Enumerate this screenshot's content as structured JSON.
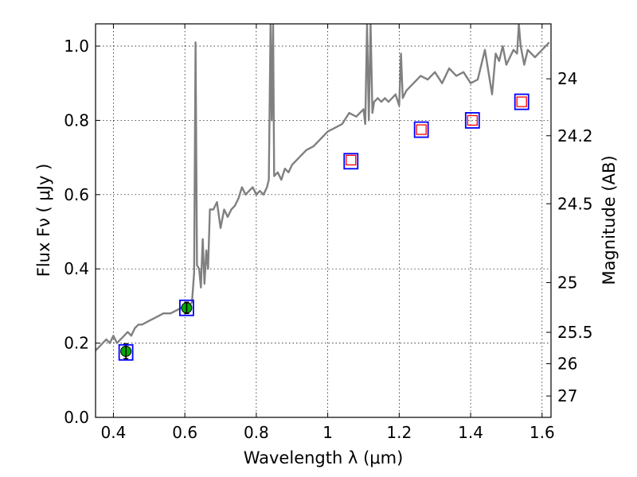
{
  "chart_data": {
    "type": "scatter",
    "xlabel": "Wavelength  λ (μm)",
    "ylabel": "Flux  Fν ( μJy )",
    "y2label": "Magnitude (AB)",
    "xlim": [
      0.35,
      1.625
    ],
    "ylim": [
      0.0,
      1.06
    ],
    "grid": true,
    "x_ticks": [
      0.4,
      0.6,
      0.8,
      1.0,
      1.2,
      1.4,
      1.6
    ],
    "x_tick_labels": [
      "0.4",
      "0.6",
      "0.8",
      "1",
      "1.2",
      "1.4",
      "1.6"
    ],
    "y_ticks": [
      0.0,
      0.2,
      0.4,
      0.6,
      0.8,
      1.0
    ],
    "y_tick_labels": [
      "0.0",
      "0.2",
      "0.4",
      "0.6",
      "0.8",
      "1.0"
    ],
    "mag_ticks": [
      24,
      24.2,
      24.5,
      25,
      25.5,
      26,
      27
    ],
    "mag_tick_labels": [
      "24",
      "24.2",
      "24.5",
      "25",
      "25.5",
      "26",
      "27"
    ],
    "model_spectrum": {
      "color": "#808080",
      "x": [
        0.35,
        0.36,
        0.37,
        0.38,
        0.39,
        0.4,
        0.41,
        0.42,
        0.43,
        0.44,
        0.45,
        0.46,
        0.47,
        0.48,
        0.5,
        0.52,
        0.54,
        0.56,
        0.58,
        0.6,
        0.61,
        0.62,
        0.626,
        0.63,
        0.634,
        0.64,
        0.645,
        0.65,
        0.655,
        0.66,
        0.665,
        0.67,
        0.68,
        0.69,
        0.7,
        0.71,
        0.72,
        0.73,
        0.74,
        0.75,
        0.76,
        0.77,
        0.78,
        0.79,
        0.8,
        0.81,
        0.82,
        0.83,
        0.835,
        0.84,
        0.843,
        0.847,
        0.85,
        0.86,
        0.87,
        0.88,
        0.89,
        0.9,
        0.92,
        0.94,
        0.96,
        0.98,
        1.0,
        1.02,
        1.04,
        1.06,
        1.08,
        1.1,
        1.105,
        1.11,
        1.115,
        1.12,
        1.125,
        1.13,
        1.14,
        1.15,
        1.16,
        1.17,
        1.18,
        1.19,
        1.2,
        1.205,
        1.21,
        1.22,
        1.24,
        1.26,
        1.28,
        1.3,
        1.32,
        1.34,
        1.36,
        1.38,
        1.4,
        1.42,
        1.44,
        1.46,
        1.47,
        1.48,
        1.49,
        1.5,
        1.51,
        1.52,
        1.53,
        1.535,
        1.54,
        1.55,
        1.56,
        1.58,
        1.6,
        1.62
      ],
      "y": [
        0.18,
        0.19,
        0.2,
        0.21,
        0.2,
        0.22,
        0.2,
        0.21,
        0.22,
        0.23,
        0.22,
        0.24,
        0.25,
        0.25,
        0.26,
        0.27,
        0.28,
        0.28,
        0.29,
        0.3,
        0.3,
        0.31,
        0.39,
        1.01,
        0.41,
        0.4,
        0.35,
        0.48,
        0.36,
        0.45,
        0.4,
        0.56,
        0.56,
        0.58,
        0.51,
        0.56,
        0.54,
        0.56,
        0.57,
        0.59,
        0.62,
        0.6,
        0.61,
        0.62,
        0.6,
        0.61,
        0.6,
        0.62,
        0.64,
        1.06,
        0.8,
        1.06,
        0.65,
        0.66,
        0.64,
        0.67,
        0.66,
        0.68,
        0.7,
        0.72,
        0.73,
        0.75,
        0.77,
        0.78,
        0.79,
        0.82,
        0.81,
        0.83,
        0.79,
        1.06,
        0.8,
        1.06,
        0.82,
        0.85,
        0.86,
        0.85,
        0.86,
        0.85,
        0.86,
        0.87,
        0.84,
        0.98,
        0.86,
        0.88,
        0.9,
        0.92,
        0.91,
        0.93,
        0.9,
        0.94,
        0.92,
        0.93,
        0.9,
        0.91,
        0.99,
        0.87,
        0.98,
        0.96,
        1.0,
        0.95,
        0.97,
        0.99,
        0.98,
        1.06,
        1.0,
        0.95,
        0.99,
        0.97,
        0.99,
        1.01
      ]
    },
    "series": [
      {
        "marker": "filled-circle",
        "color": "#00aa00",
        "points": [
          {
            "x": 0.435,
            "y": 0.178,
            "err": 0.02
          },
          {
            "x": 0.605,
            "y": 0.295,
            "err": 0.015
          }
        ]
      },
      {
        "marker": "open-square-red",
        "color": "#ff0000",
        "points": [
          {
            "x": 1.065,
            "y": 0.693
          },
          {
            "x": 1.262,
            "y": 0.775
          },
          {
            "x": 1.405,
            "y": 0.8
          },
          {
            "x": 1.543,
            "y": 0.85
          }
        ]
      },
      {
        "marker": "open-square-blue",
        "color": "#0000ff",
        "points": [
          {
            "x": 0.435,
            "y": 0.175
          },
          {
            "x": 0.605,
            "y": 0.295
          },
          {
            "x": 1.065,
            "y": 0.69
          },
          {
            "x": 1.262,
            "y": 0.775
          },
          {
            "x": 1.405,
            "y": 0.8
          },
          {
            "x": 1.543,
            "y": 0.85
          }
        ]
      }
    ]
  }
}
